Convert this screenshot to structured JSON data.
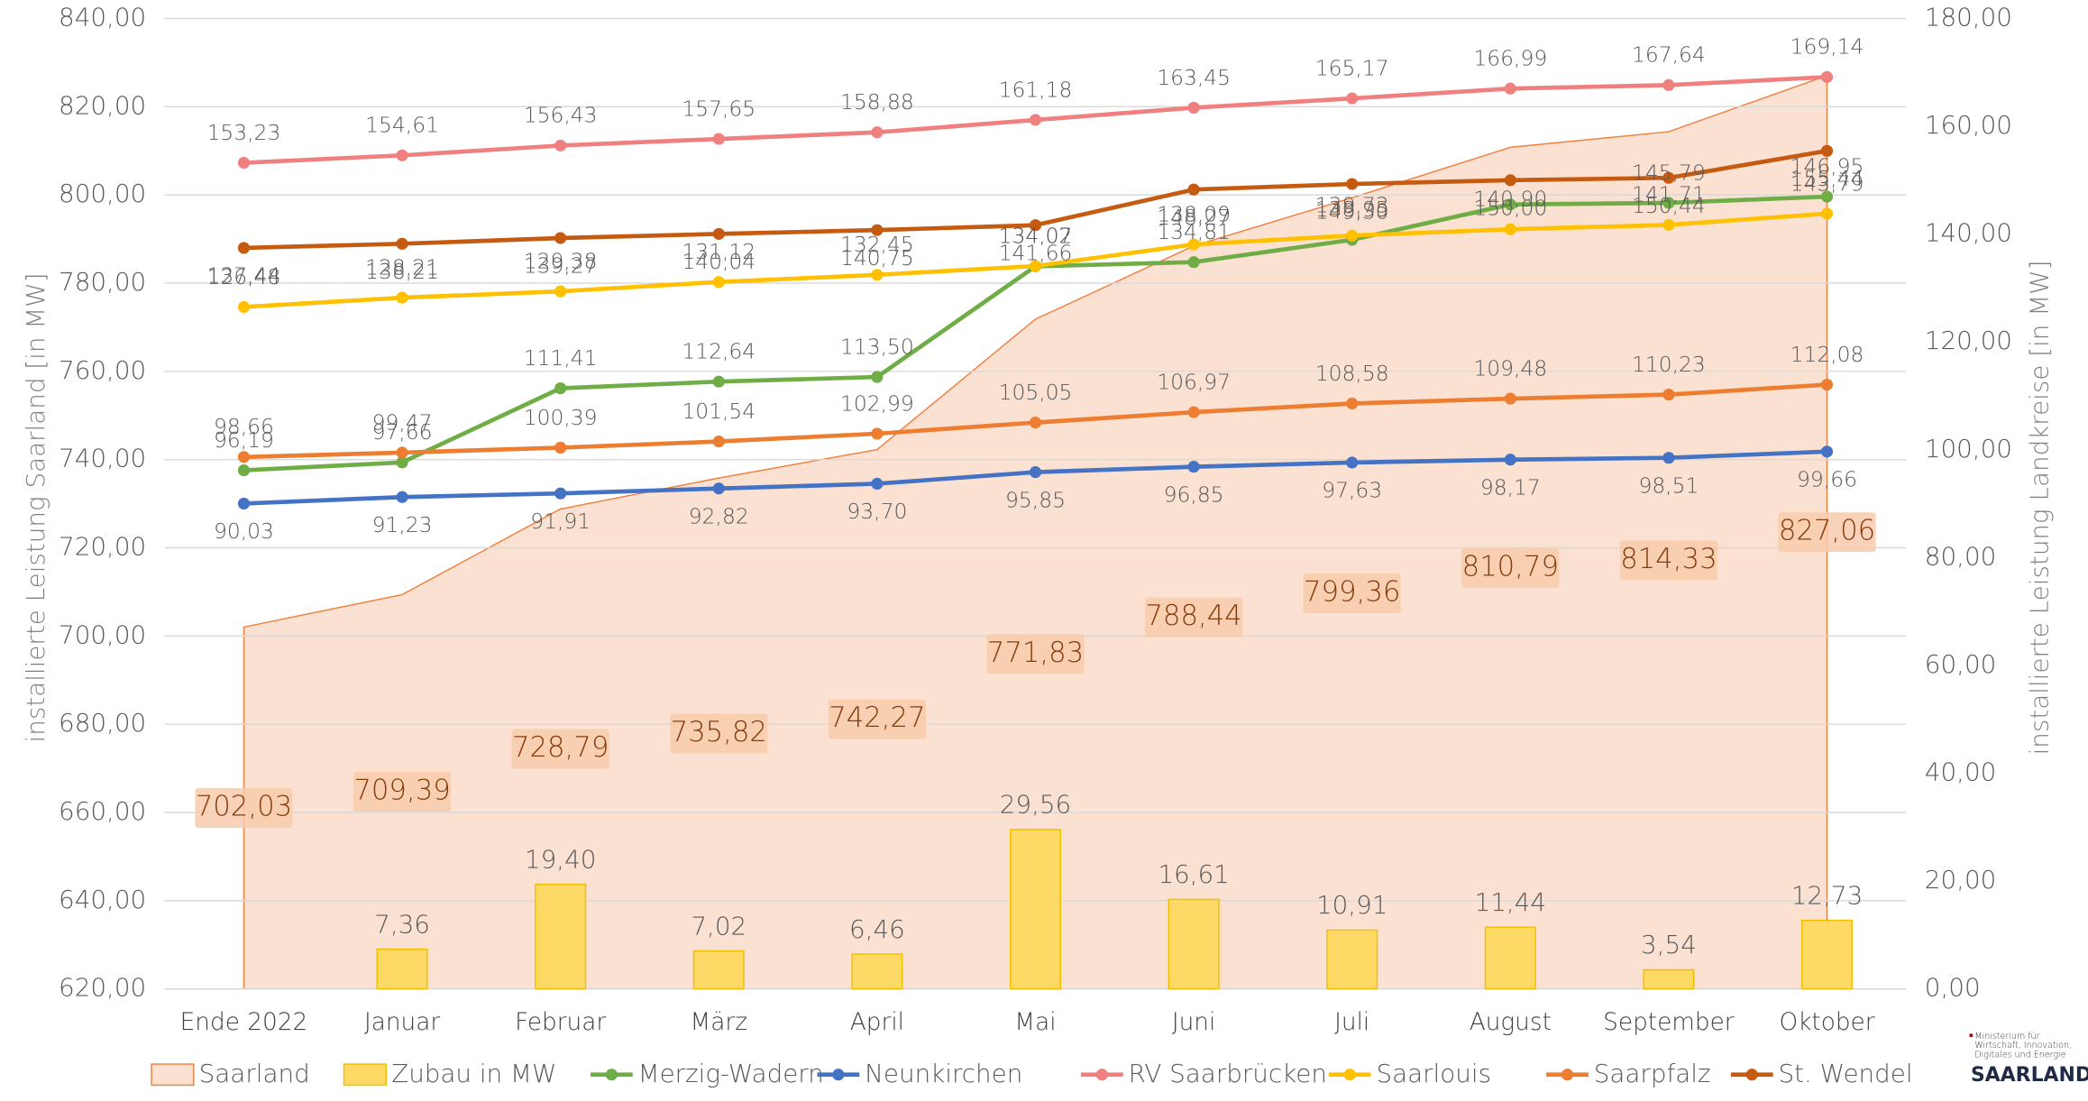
{
  "chart_data": {
    "type": "combo",
    "y_label": "installierte Leistung Saarland [in MW]",
    "y2_label": "installierte Leistung Landkreise [in MW]",
    "categories": [
      "Ende 2022",
      "Januar",
      "Februar",
      "März",
      "April",
      "Mai",
      "Juni",
      "Juli",
      "August",
      "September",
      "Oktober"
    ],
    "ylim": [
      620,
      840
    ],
    "yticks": [
      {
        "value": 620,
        "label": "620,00"
      },
      {
        "value": 640,
        "label": "640,00"
      },
      {
        "value": 660,
        "label": "660,00"
      },
      {
        "value": 680,
        "label": "680,00"
      },
      {
        "value": 700,
        "label": "700,00"
      },
      {
        "value": 720,
        "label": "720,00"
      },
      {
        "value": 740,
        "label": "740,00"
      },
      {
        "value": 760,
        "label": "760,00"
      },
      {
        "value": 780,
        "label": "780,00"
      },
      {
        "value": 800,
        "label": "800,00"
      },
      {
        "value": 820,
        "label": "820,00"
      },
      {
        "value": 840,
        "label": "840,00"
      }
    ],
    "y2lim": [
      0,
      180
    ],
    "y2ticks": [
      {
        "value": 0,
        "label": "0,00"
      },
      {
        "value": 20,
        "label": "20,00"
      },
      {
        "value": 40,
        "label": "40,00"
      },
      {
        "value": 60,
        "label": "60,00"
      },
      {
        "value": 80,
        "label": "80,00"
      },
      {
        "value": 100,
        "label": "100,00"
      },
      {
        "value": 120,
        "label": "120,00"
      },
      {
        "value": 140,
        "label": "140,00"
      },
      {
        "value": 160,
        "label": "160,00"
      },
      {
        "value": 180,
        "label": "180,00"
      }
    ],
    "grid": true,
    "legend": "bottom",
    "series": [
      {
        "name": "Saarland",
        "type": "area",
        "color": "#fbe1d2",
        "values": [
          702.03,
          709.39,
          728.79,
          735.82,
          742.27,
          771.83,
          788.44,
          799.36,
          810.79,
          814.33,
          827.06
        ],
        "value_labels": [
          "702,03",
          "709,39",
          "728,79",
          "735,82",
          "742,27",
          "771,83",
          "788,44",
          "799,36",
          "810,79",
          "814,33",
          "827,06"
        ]
      },
      {
        "name": "Zubau in MW",
        "type": "bar",
        "axis": "y2",
        "color": "#ffd966",
        "values": [
          null,
          7.36,
          19.4,
          7.02,
          6.46,
          29.56,
          16.61,
          10.91,
          11.44,
          3.54,
          12.73
        ],
        "value_labels": [
          null,
          "7,36",
          "19,40",
          "7,02",
          "6,46",
          "29,56",
          "16,61",
          "10,91",
          "11,44",
          "3,54",
          "12,73"
        ]
      },
      {
        "name": "Merzig-Wadern",
        "type": "line",
        "axis": "y2",
        "color": "#70ad47",
        "values": [
          96.19,
          97.66,
          111.41,
          112.64,
          113.5,
          134.02,
          134.81,
          138.95,
          145.5,
          145.79,
          146.95
        ],
        "value_labels": [
          "96,19",
          "97,66",
          "111,41",
          "112,64",
          "113,50",
          "134,02",
          "134,81",
          "138,95",
          null,
          "145,79",
          "146,95"
        ]
      },
      {
        "name": "Neunkirchen",
        "type": "line",
        "axis": "y2",
        "color": "#4472c4",
        "values": [
          90.03,
          91.23,
          91.91,
          92.82,
          93.7,
          95.85,
          96.85,
          97.63,
          98.17,
          98.51,
          99.66
        ],
        "value_labels": [
          "90,03",
          "91,23",
          "91,91",
          "92,82",
          "93,70",
          "95,85",
          "96,85",
          "97,63",
          "98,17",
          "98,51",
          "99,66"
        ]
      },
      {
        "name": "RV Saarbrücken",
        "type": "line",
        "axis": "y2",
        "color": "#f08080",
        "values": [
          153.23,
          154.61,
          156.43,
          157.65,
          158.88,
          161.18,
          163.45,
          165.17,
          166.99,
          167.64,
          169.14
        ],
        "value_labels": [
          "153,23",
          "154,61",
          "156,43",
          "157,65",
          "158,88",
          "161,18",
          "163,45",
          "165,17",
          "166,99",
          "167,64",
          "169,14"
        ]
      },
      {
        "name": "Saarlouis",
        "type": "line",
        "axis": "y2",
        "color": "#ffc000",
        "values": [
          126.48,
          128.21,
          129.38,
          131.12,
          132.45,
          134.07,
          138.09,
          139.73,
          140.9,
          141.71,
          143.79
        ],
        "value_labels": [
          "126,48",
          "128,21",
          "129,38",
          "131,12",
          "132,45",
          "134,07",
          "138,09",
          "139,73",
          "140,90",
          "141,71",
          "143,79"
        ]
      },
      {
        "name": "Saarpfalz",
        "type": "line",
        "axis": "y2",
        "color": "#ed7d31",
        "values": [
          98.66,
          99.47,
          100.39,
          101.54,
          102.99,
          105.05,
          106.97,
          108.58,
          109.48,
          110.23,
          112.08
        ],
        "value_labels": [
          "98,66",
          "99,47",
          "100,39",
          "101,54",
          "102,99",
          "105,05",
          "106,97",
          "108,58",
          "109,48",
          "110,23",
          "112,08"
        ]
      },
      {
        "name": "St. Wendel",
        "type": "line",
        "axis": "y2",
        "color": "#c55a11",
        "values": [
          137.44,
          138.21,
          139.27,
          140.04,
          140.75,
          141.66,
          148.27,
          149.3,
          150.0,
          150.44,
          155.44
        ],
        "value_labels": [
          "137,44",
          "138,21",
          "139,27",
          "140,04",
          "140,75",
          "141,66",
          "148,27",
          "149,30",
          "150,00",
          "150,44",
          "155,44"
        ]
      }
    ]
  },
  "logo": {
    "ministry": [
      "Ministerium für",
      "Wirtschaft, Innovation,",
      "Digitales und Energie"
    ],
    "name": "SAARLAND"
  }
}
